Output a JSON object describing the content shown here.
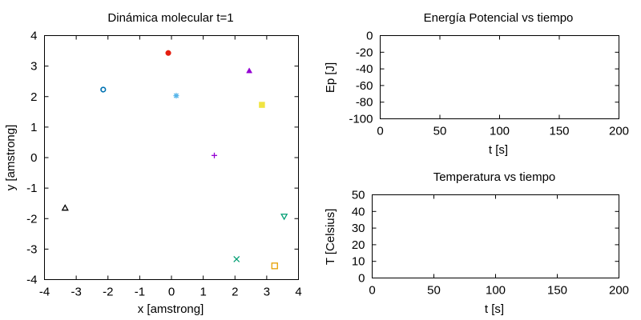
{
  "chart_data": [
    {
      "id": "scatter",
      "type": "scatter",
      "title": "Dinámica molecular t=1",
      "xlabel": "x [amstrong]",
      "ylabel": "y [amstrong]",
      "xlim": [
        -4,
        4
      ],
      "ylim": [
        -4,
        4
      ],
      "xticks": [
        "-4",
        "-3",
        "-2",
        "-1",
        "0",
        "1",
        "2",
        "3",
        "4"
      ],
      "yticks": [
        "-4",
        "-3",
        "-2",
        "-1",
        "0",
        "1",
        "2",
        "3",
        "4"
      ],
      "grid": false,
      "points": [
        {
          "x": 1.35,
          "y": 0.07,
          "marker": "plus",
          "color": "#9400d3"
        },
        {
          "x": 2.05,
          "y": -3.33,
          "marker": "cross",
          "color": "#009e73"
        },
        {
          "x": 0.15,
          "y": 2.03,
          "marker": "asterisk",
          "color": "#56b4e9"
        },
        {
          "x": 3.25,
          "y": -3.55,
          "marker": "open-square",
          "color": "#e69f00"
        },
        {
          "x": 2.85,
          "y": 1.73,
          "marker": "filled-square",
          "color": "#f0e442"
        },
        {
          "x": -2.15,
          "y": 2.23,
          "marker": "open-circle",
          "color": "#0072b2"
        },
        {
          "x": -0.1,
          "y": 3.43,
          "marker": "filled-circle",
          "color": "#e51e10"
        },
        {
          "x": -3.35,
          "y": -1.65,
          "marker": "open-triangle-up",
          "color": "#000000"
        },
        {
          "x": 2.45,
          "y": 2.85,
          "marker": "filled-triangle-up",
          "color": "#9400d3"
        },
        {
          "x": 3.55,
          "y": -1.93,
          "marker": "open-triangle-down",
          "color": "#009e73"
        }
      ]
    },
    {
      "id": "energy",
      "type": "line",
      "title": "Energía Potencial vs tiempo",
      "xlabel": "t [s]",
      "ylabel": "Ep [J]",
      "xlim": [
        0,
        200
      ],
      "ylim": [
        -100,
        0
      ],
      "xticks": [
        "0",
        "50",
        "100",
        "150",
        "200"
      ],
      "yticks": [
        "0",
        "-20",
        "-40",
        "-60",
        "-80",
        "-100"
      ],
      "grid": false,
      "series": []
    },
    {
      "id": "temperature",
      "type": "line",
      "title": "Temperatura vs tiempo",
      "xlabel": "t [s]",
      "ylabel": "T [Celsius]",
      "xlim": [
        0,
        200
      ],
      "ylim": [
        0,
        50
      ],
      "xticks": [
        "0",
        "50",
        "100",
        "150",
        "200"
      ],
      "yticks": [
        "50",
        "40",
        "30",
        "20",
        "10",
        "0"
      ],
      "grid": false,
      "series": []
    }
  ]
}
